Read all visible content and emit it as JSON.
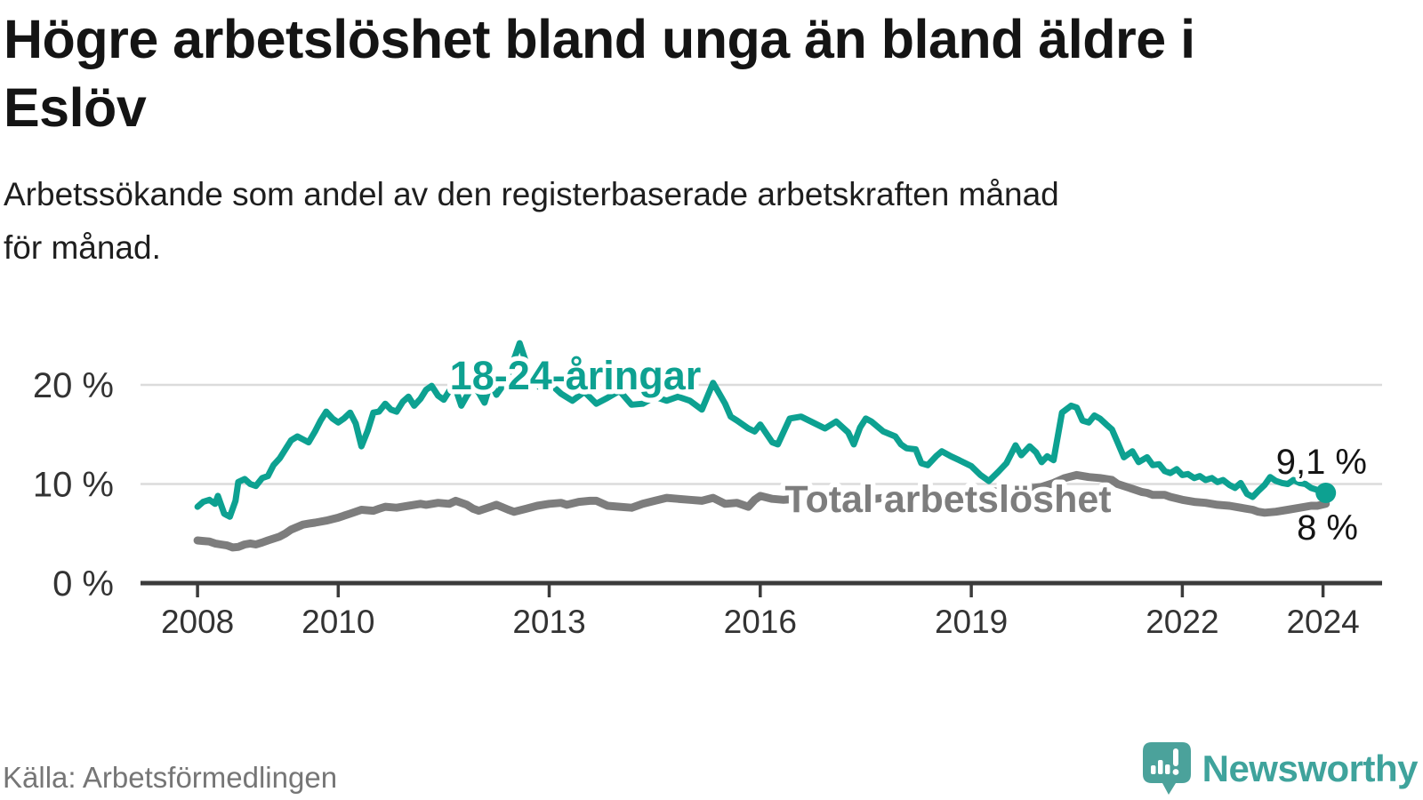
{
  "title_lines": [
    "Högre arbetslöshet bland unga än bland äldre i",
    "Eslöv"
  ],
  "subtitle_lines": [
    "Arbetssökande som andel av den registerbaserade arbetskraften månad",
    "för månad."
  ],
  "source": "Källa: Arbetsförmedlingen",
  "branding": {
    "name": "Newsworthy",
    "logo_icon": "speech-bubble-bar-chart-exclamation",
    "brand_color": "#3fa39c",
    "bubble_color": "#4ba29b"
  },
  "colors": {
    "youth_line": "#0da191",
    "total_line": "#7d7d7d",
    "grid": "#dbdbdb",
    "axis": "#3b3b3b",
    "value_text": "#141414"
  },
  "chart_data": {
    "type": "line",
    "x_unit": "decimal_year",
    "xlim": [
      2007.19,
      2024.84
    ],
    "ylim": [
      0,
      24.66
    ],
    "grid": "horizontal",
    "legend_position": "inline-labels",
    "yticks": [
      {
        "value": 0,
        "label": "0 %"
      },
      {
        "value": 10,
        "label": "10 %"
      },
      {
        "value": 20,
        "label": "20 %"
      }
    ],
    "xticks": [
      {
        "value": 2008,
        "label": "2008"
      },
      {
        "value": 2010,
        "label": "2010"
      },
      {
        "value": 2013,
        "label": "2013"
      },
      {
        "value": 2016,
        "label": "2016"
      },
      {
        "value": 2019,
        "label": "2019"
      },
      {
        "value": 2022,
        "label": "2022"
      },
      {
        "value": 2024,
        "label": "2024"
      }
    ],
    "series": [
      {
        "name": "18-24-åringar",
        "color": "#0da191",
        "end_label": "9,1 %",
        "latest_value": 9.1,
        "points": [
          [
            2008.0,
            7.7
          ],
          [
            2008.08,
            8.2
          ],
          [
            2008.17,
            8.4
          ],
          [
            2008.25,
            8.0
          ],
          [
            2008.29,
            8.8
          ],
          [
            2008.38,
            7.0
          ],
          [
            2008.46,
            6.7
          ],
          [
            2008.54,
            8.3
          ],
          [
            2008.58,
            10.2
          ],
          [
            2008.67,
            10.5
          ],
          [
            2008.75,
            10.0
          ],
          [
            2008.83,
            9.8
          ],
          [
            2008.92,
            10.6
          ],
          [
            2009.0,
            10.8
          ],
          [
            2009.08,
            11.9
          ],
          [
            2009.17,
            12.6
          ],
          [
            2009.25,
            13.5
          ],
          [
            2009.33,
            14.4
          ],
          [
            2009.42,
            14.8
          ],
          [
            2009.5,
            14.5
          ],
          [
            2009.58,
            14.2
          ],
          [
            2009.67,
            15.3
          ],
          [
            2009.75,
            16.4
          ],
          [
            2009.83,
            17.3
          ],
          [
            2009.92,
            16.6
          ],
          [
            2010.0,
            16.2
          ],
          [
            2010.08,
            16.6
          ],
          [
            2010.17,
            17.2
          ],
          [
            2010.25,
            16.1
          ],
          [
            2010.33,
            13.8
          ],
          [
            2010.42,
            15.4
          ],
          [
            2010.5,
            17.2
          ],
          [
            2010.58,
            17.3
          ],
          [
            2010.67,
            18.1
          ],
          [
            2010.75,
            17.5
          ],
          [
            2010.83,
            17.3
          ],
          [
            2010.92,
            18.3
          ],
          [
            2011.0,
            18.8
          ],
          [
            2011.08,
            17.9
          ],
          [
            2011.17,
            18.6
          ],
          [
            2011.25,
            19.5
          ],
          [
            2011.33,
            19.9
          ],
          [
            2011.42,
            18.9
          ],
          [
            2011.5,
            18.5
          ],
          [
            2011.58,
            19.4
          ],
          [
            2011.67,
            19.6
          ],
          [
            2011.75,
            17.9
          ],
          [
            2011.83,
            18.9
          ],
          [
            2011.92,
            19.9
          ],
          [
            2012.0,
            19.2
          ],
          [
            2012.08,
            18.2
          ],
          [
            2012.17,
            20.3
          ],
          [
            2012.25,
            19.0
          ],
          [
            2012.33,
            19.8
          ],
          [
            2012.42,
            20.9
          ],
          [
            2012.5,
            22.6
          ],
          [
            2012.58,
            24.2
          ],
          [
            2012.67,
            22.3
          ],
          [
            2012.75,
            20.6
          ],
          [
            2012.83,
            20.0
          ],
          [
            2012.92,
            19.4
          ],
          [
            2013.0,
            20.2
          ],
          [
            2013.17,
            19.1
          ],
          [
            2013.33,
            18.4
          ],
          [
            2013.5,
            19.3
          ],
          [
            2013.67,
            18.1
          ],
          [
            2013.83,
            18.7
          ],
          [
            2014.0,
            19.4
          ],
          [
            2014.17,
            18.0
          ],
          [
            2014.33,
            18.1
          ],
          [
            2014.5,
            18.8
          ],
          [
            2014.67,
            18.4
          ],
          [
            2014.83,
            18.8
          ],
          [
            2015.0,
            18.4
          ],
          [
            2015.17,
            17.5
          ],
          [
            2015.33,
            20.2
          ],
          [
            2015.42,
            19.1
          ],
          [
            2015.5,
            18.1
          ],
          [
            2015.58,
            16.8
          ],
          [
            2015.67,
            16.4
          ],
          [
            2015.83,
            15.6
          ],
          [
            2015.92,
            15.3
          ],
          [
            2016.0,
            16.0
          ],
          [
            2016.17,
            14.2
          ],
          [
            2016.25,
            14.0
          ],
          [
            2016.42,
            16.6
          ],
          [
            2016.58,
            16.8
          ],
          [
            2016.75,
            16.2
          ],
          [
            2016.92,
            15.6
          ],
          [
            2017.08,
            16.3
          ],
          [
            2017.25,
            15.2
          ],
          [
            2017.33,
            14.0
          ],
          [
            2017.42,
            15.7
          ],
          [
            2017.5,
            16.6
          ],
          [
            2017.58,
            16.3
          ],
          [
            2017.75,
            15.3
          ],
          [
            2017.92,
            14.8
          ],
          [
            2018.0,
            14.0
          ],
          [
            2018.08,
            13.6
          ],
          [
            2018.21,
            13.5
          ],
          [
            2018.29,
            12.1
          ],
          [
            2018.38,
            11.9
          ],
          [
            2018.5,
            12.8
          ],
          [
            2018.58,
            13.3
          ],
          [
            2018.71,
            12.8
          ],
          [
            2018.83,
            12.4
          ],
          [
            2019.0,
            11.8
          ],
          [
            2019.13,
            10.9
          ],
          [
            2019.25,
            10.3
          ],
          [
            2019.38,
            11.2
          ],
          [
            2019.5,
            12.1
          ],
          [
            2019.63,
            13.9
          ],
          [
            2019.71,
            12.9
          ],
          [
            2019.83,
            13.8
          ],
          [
            2019.92,
            13.2
          ],
          [
            2020.0,
            12.2
          ],
          [
            2020.08,
            12.8
          ],
          [
            2020.17,
            12.4
          ],
          [
            2020.29,
            17.2
          ],
          [
            2020.42,
            17.9
          ],
          [
            2020.5,
            17.7
          ],
          [
            2020.58,
            16.4
          ],
          [
            2020.67,
            16.2
          ],
          [
            2020.75,
            16.9
          ],
          [
            2020.83,
            16.6
          ],
          [
            2020.92,
            16.0
          ],
          [
            2021.0,
            15.5
          ],
          [
            2021.08,
            14.2
          ],
          [
            2021.17,
            12.7
          ],
          [
            2021.29,
            13.3
          ],
          [
            2021.38,
            12.2
          ],
          [
            2021.5,
            12.7
          ],
          [
            2021.58,
            11.9
          ],
          [
            2021.67,
            12.0
          ],
          [
            2021.75,
            11.3
          ],
          [
            2021.83,
            11.1
          ],
          [
            2021.92,
            11.5
          ],
          [
            2022.0,
            10.9
          ],
          [
            2022.08,
            11.0
          ],
          [
            2022.17,
            10.6
          ],
          [
            2022.25,
            10.8
          ],
          [
            2022.33,
            10.4
          ],
          [
            2022.42,
            10.6
          ],
          [
            2022.5,
            10.2
          ],
          [
            2022.58,
            10.4
          ],
          [
            2022.67,
            9.9
          ],
          [
            2022.75,
            9.6
          ],
          [
            2022.83,
            10.1
          ],
          [
            2022.92,
            9.0
          ],
          [
            2023.0,
            8.7
          ],
          [
            2023.08,
            9.3
          ],
          [
            2023.17,
            9.9
          ],
          [
            2023.25,
            10.7
          ],
          [
            2023.33,
            10.3
          ],
          [
            2023.42,
            10.1
          ],
          [
            2023.5,
            10.0
          ],
          [
            2023.58,
            10.4
          ],
          [
            2023.67,
            10.1
          ],
          [
            2023.75,
            10.0
          ],
          [
            2023.83,
            9.6
          ],
          [
            2023.92,
            9.4
          ],
          [
            2024.04,
            9.1
          ]
        ]
      },
      {
        "name": "Total arbetslöshet",
        "color": "#7d7d7d",
        "end_label": "8 %",
        "latest_value": 8.0,
        "points": [
          [
            2008.0,
            4.3
          ],
          [
            2008.08,
            4.25
          ],
          [
            2008.17,
            4.2
          ],
          [
            2008.25,
            4.0
          ],
          [
            2008.33,
            3.9
          ],
          [
            2008.42,
            3.8
          ],
          [
            2008.5,
            3.6
          ],
          [
            2008.58,
            3.65
          ],
          [
            2008.67,
            3.9
          ],
          [
            2008.75,
            4.0
          ],
          [
            2008.83,
            3.9
          ],
          [
            2008.92,
            4.1
          ],
          [
            2009.0,
            4.3
          ],
          [
            2009.17,
            4.7
          ],
          [
            2009.25,
            5.0
          ],
          [
            2009.33,
            5.4
          ],
          [
            2009.5,
            5.9
          ],
          [
            2009.58,
            6.0
          ],
          [
            2009.67,
            6.1
          ],
          [
            2009.83,
            6.3
          ],
          [
            2010.0,
            6.6
          ],
          [
            2010.08,
            6.8
          ],
          [
            2010.17,
            7.0
          ],
          [
            2010.33,
            7.4
          ],
          [
            2010.5,
            7.3
          ],
          [
            2010.58,
            7.5
          ],
          [
            2010.67,
            7.7
          ],
          [
            2010.83,
            7.6
          ],
          [
            2011.0,
            7.8
          ],
          [
            2011.17,
            8.0
          ],
          [
            2011.25,
            7.9
          ],
          [
            2011.42,
            8.1
          ],
          [
            2011.58,
            8.0
          ],
          [
            2011.67,
            8.3
          ],
          [
            2011.83,
            7.9
          ],
          [
            2011.92,
            7.5
          ],
          [
            2012.0,
            7.3
          ],
          [
            2012.17,
            7.7
          ],
          [
            2012.25,
            7.9
          ],
          [
            2012.42,
            7.4
          ],
          [
            2012.5,
            7.2
          ],
          [
            2012.67,
            7.5
          ],
          [
            2012.83,
            7.8
          ],
          [
            2013.0,
            8.0
          ],
          [
            2013.17,
            8.1
          ],
          [
            2013.25,
            7.9
          ],
          [
            2013.42,
            8.2
          ],
          [
            2013.58,
            8.3
          ],
          [
            2013.67,
            8.3
          ],
          [
            2013.83,
            7.8
          ],
          [
            2014.0,
            7.7
          ],
          [
            2014.17,
            7.6
          ],
          [
            2014.33,
            8.0
          ],
          [
            2014.5,
            8.3
          ],
          [
            2014.67,
            8.6
          ],
          [
            2014.83,
            8.5
          ],
          [
            2015.0,
            8.4
          ],
          [
            2015.17,
            8.3
          ],
          [
            2015.33,
            8.6
          ],
          [
            2015.5,
            8.0
          ],
          [
            2015.67,
            8.1
          ],
          [
            2015.83,
            7.7
          ],
          [
            2015.92,
            8.4
          ],
          [
            2016.0,
            8.8
          ],
          [
            2016.17,
            8.5
          ],
          [
            2016.33,
            8.4
          ],
          [
            2016.5,
            8.5
          ],
          [
            2016.67,
            8.4
          ],
          [
            2016.83,
            8.3
          ],
          [
            2017.0,
            8.4
          ],
          [
            2017.25,
            8.5
          ],
          [
            2017.5,
            8.4
          ],
          [
            2017.75,
            8.6
          ],
          [
            2018.0,
            8.6
          ],
          [
            2018.25,
            8.7
          ],
          [
            2018.5,
            8.8
          ],
          [
            2018.75,
            8.9
          ],
          [
            2019.0,
            9.0
          ],
          [
            2019.25,
            9.2
          ],
          [
            2019.5,
            9.3
          ],
          [
            2019.75,
            9.5
          ],
          [
            2020.0,
            9.7
          ],
          [
            2020.17,
            10.1
          ],
          [
            2020.33,
            10.6
          ],
          [
            2020.5,
            10.9
          ],
          [
            2020.67,
            10.7
          ],
          [
            2020.83,
            10.6
          ],
          [
            2021.0,
            10.4
          ],
          [
            2021.08,
            10.0
          ],
          [
            2021.25,
            9.6
          ],
          [
            2021.42,
            9.2
          ],
          [
            2021.5,
            9.1
          ],
          [
            2021.58,
            8.9
          ],
          [
            2021.75,
            8.9
          ],
          [
            2021.83,
            8.7
          ],
          [
            2022.0,
            8.4
          ],
          [
            2022.17,
            8.2
          ],
          [
            2022.33,
            8.1
          ],
          [
            2022.5,
            7.9
          ],
          [
            2022.67,
            7.8
          ],
          [
            2022.83,
            7.6
          ],
          [
            2023.0,
            7.4
          ],
          [
            2023.08,
            7.2
          ],
          [
            2023.17,
            7.1
          ],
          [
            2023.33,
            7.2
          ],
          [
            2023.5,
            7.4
          ],
          [
            2023.67,
            7.6
          ],
          [
            2023.83,
            7.8
          ],
          [
            2023.92,
            7.8
          ],
          [
            2024.04,
            8.0
          ]
        ]
      }
    ]
  }
}
